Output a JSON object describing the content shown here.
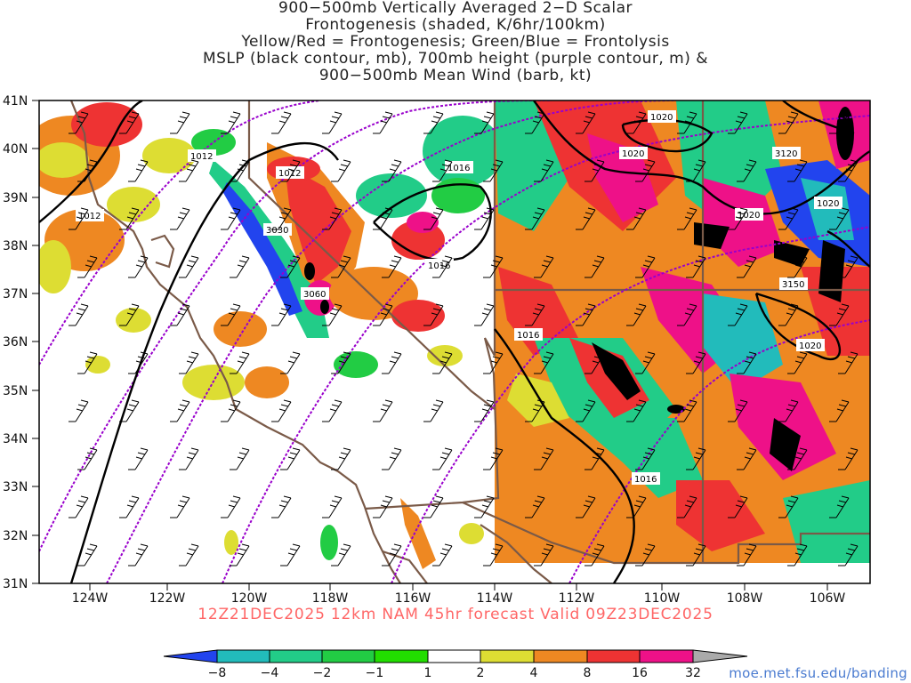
{
  "title_lines": [
    "900−500mb Vertically Averaged 2−D Scalar",
    "Frontogenesis (shaded, K/6hr/100km)",
    "Yellow/Red = Frontogenesis;  Green/Blue = Frontolysis",
    "MSLP (black contour, mb), 700mb height (purple contour, m) &",
    "900−500mb Mean Wind (barb, kt)"
  ],
  "latitude_labels": [
    "41N",
    "40N",
    "39N",
    "38N",
    "37N",
    "36N",
    "35N",
    "34N",
    "33N",
    "32N",
    "31N"
  ],
  "longitude_labels": [
    "124W",
    "122W",
    "120W",
    "118W",
    "116W",
    "114W",
    "112W",
    "110W",
    "108W",
    "106W"
  ],
  "mslp_contour_labels": [
    "1012",
    "1012",
    "1012",
    "1016",
    "1016",
    "1016",
    "1016",
    "1020",
    "1020",
    "1020",
    "1020",
    "1020"
  ],
  "height_contour_labels": [
    "3030",
    "3060",
    "3120",
    "3150"
  ],
  "valid_text": "12Z21DEC2025 12km NAM 45hr forecast Valid 09Z23DEC2025",
  "credit": "moe.met.fsu.edu/banding",
  "colorbar": {
    "labels": [
      "−8",
      "−4",
      "−2",
      "−1",
      "1",
      "2",
      "4",
      "8",
      "16",
      "32"
    ],
    "colors": [
      "#2244ee",
      "#22bbbb",
      "#22cc88",
      "#22cc44",
      "#ffffff",
      "#dddd33",
      "#ee8822",
      "#ee3333",
      "#ee1188",
      "#000000",
      "#aaaaaa"
    ]
  },
  "colors": {
    "mslp_contour": "#000000",
    "height_contour": "#9900cc",
    "border": "#7a5a48",
    "valid_text": "#ff6666",
    "credit": "#4a7bd0"
  }
}
